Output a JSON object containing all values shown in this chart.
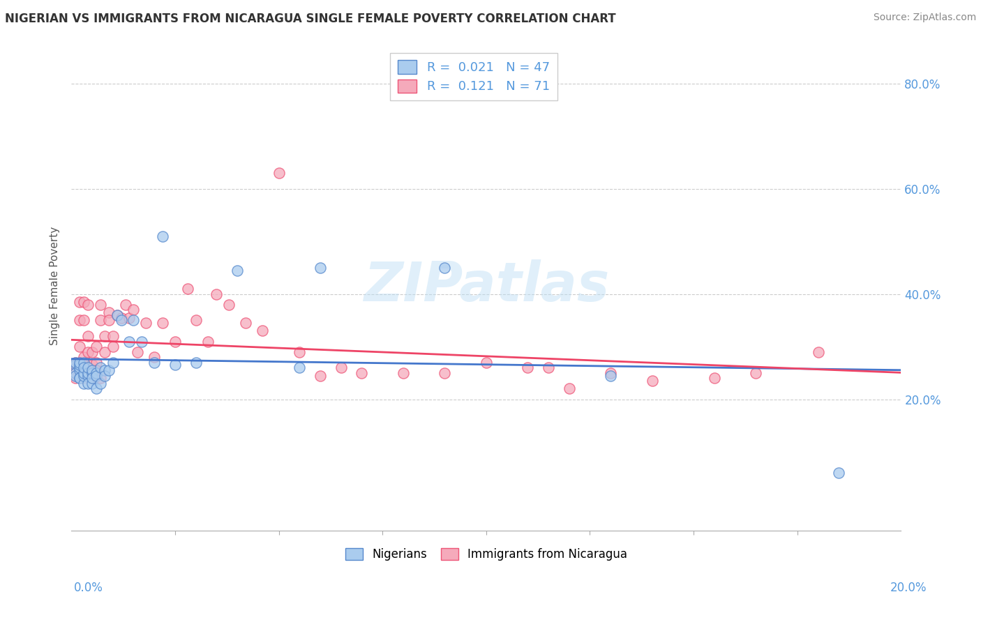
{
  "title": "NIGERIAN VS IMMIGRANTS FROM NICARAGUA SINGLE FEMALE POVERTY CORRELATION CHART",
  "source": "Source: ZipAtlas.com",
  "ylabel": "Single Female Poverty",
  "right_yticks": [
    "80.0%",
    "60.0%",
    "40.0%",
    "20.0%"
  ],
  "right_ytick_vals": [
    0.8,
    0.6,
    0.4,
    0.2
  ],
  "watermark": "ZIPatlas",
  "xlim": [
    0.0,
    0.2
  ],
  "ylim": [
    -0.05,
    0.88
  ],
  "nigerian_scatter_x": [
    0.001,
    0.001,
    0.001,
    0.001,
    0.002,
    0.002,
    0.002,
    0.002,
    0.002,
    0.002,
    0.003,
    0.003,
    0.003,
    0.003,
    0.003,
    0.004,
    0.004,
    0.004,
    0.004,
    0.005,
    0.005,
    0.005,
    0.005,
    0.006,
    0.006,
    0.006,
    0.007,
    0.007,
    0.008,
    0.008,
    0.009,
    0.01,
    0.011,
    0.012,
    0.014,
    0.015,
    0.017,
    0.02,
    0.022,
    0.025,
    0.03,
    0.04,
    0.055,
    0.06,
    0.09,
    0.13,
    0.185
  ],
  "nigerian_scatter_y": [
    0.265,
    0.25,
    0.245,
    0.27,
    0.255,
    0.24,
    0.26,
    0.24,
    0.265,
    0.27,
    0.23,
    0.245,
    0.25,
    0.27,
    0.26,
    0.245,
    0.25,
    0.26,
    0.23,
    0.25,
    0.255,
    0.23,
    0.24,
    0.25,
    0.245,
    0.22,
    0.23,
    0.26,
    0.255,
    0.245,
    0.255,
    0.27,
    0.36,
    0.35,
    0.31,
    0.35,
    0.31,
    0.27,
    0.51,
    0.265,
    0.27,
    0.445,
    0.26,
    0.45,
    0.45,
    0.245,
    0.06
  ],
  "nicaragua_scatter_x": [
    0.001,
    0.001,
    0.001,
    0.001,
    0.001,
    0.002,
    0.002,
    0.002,
    0.002,
    0.002,
    0.002,
    0.003,
    0.003,
    0.003,
    0.003,
    0.003,
    0.003,
    0.004,
    0.004,
    0.004,
    0.004,
    0.005,
    0.005,
    0.005,
    0.005,
    0.006,
    0.006,
    0.006,
    0.006,
    0.007,
    0.007,
    0.007,
    0.008,
    0.008,
    0.009,
    0.009,
    0.01,
    0.01,
    0.011,
    0.012,
    0.013,
    0.014,
    0.015,
    0.016,
    0.018,
    0.02,
    0.022,
    0.025,
    0.028,
    0.03,
    0.033,
    0.035,
    0.038,
    0.042,
    0.046,
    0.05,
    0.055,
    0.06,
    0.065,
    0.07,
    0.08,
    0.09,
    0.1,
    0.11,
    0.115,
    0.12,
    0.13,
    0.14,
    0.155,
    0.165,
    0.18
  ],
  "nicaragua_scatter_y": [
    0.265,
    0.255,
    0.25,
    0.27,
    0.24,
    0.3,
    0.27,
    0.26,
    0.35,
    0.385,
    0.25,
    0.24,
    0.25,
    0.28,
    0.265,
    0.35,
    0.385,
    0.26,
    0.29,
    0.32,
    0.38,
    0.29,
    0.24,
    0.245,
    0.265,
    0.25,
    0.3,
    0.27,
    0.255,
    0.38,
    0.35,
    0.24,
    0.32,
    0.29,
    0.365,
    0.35,
    0.32,
    0.3,
    0.36,
    0.355,
    0.38,
    0.355,
    0.37,
    0.29,
    0.345,
    0.28,
    0.345,
    0.31,
    0.41,
    0.35,
    0.31,
    0.4,
    0.38,
    0.345,
    0.33,
    0.63,
    0.29,
    0.245,
    0.26,
    0.25,
    0.25,
    0.25,
    0.27,
    0.26,
    0.26,
    0.22,
    0.25,
    0.235,
    0.24,
    0.25,
    0.29
  ],
  "nigerian_color": "#aaccee",
  "nigerian_edge_color": "#5588cc",
  "nicaragua_color": "#f5aabb",
  "nicaragua_edge_color": "#ee5577",
  "nigerian_line_color": "#4477cc",
  "nicaragua_line_color": "#ee4466",
  "background_color": "#ffffff",
  "grid_color": "#cccccc",
  "title_color": "#333333",
  "source_color": "#888888",
  "tick_color": "#5599dd",
  "legend_r1": "R =  0.021   N = 47",
  "legend_r2": "R =  0.121   N = 71",
  "legend_nigerians": "Nigerians",
  "legend_nicaragua": "Immigrants from Nicaragua"
}
